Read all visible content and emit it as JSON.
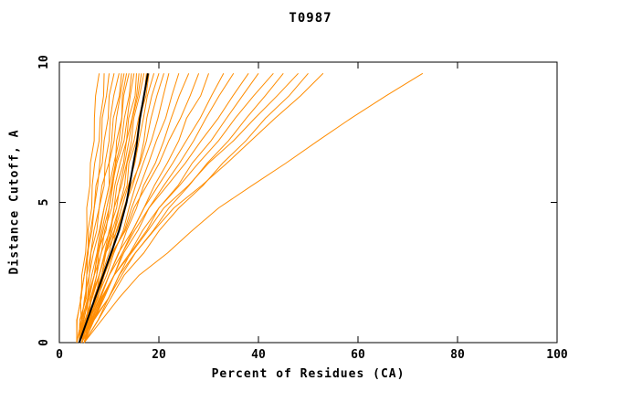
{
  "chart_data": {
    "type": "line",
    "title": "T0987",
    "xlabel": "Percent of Residues (CA)",
    "ylabel": "Distance Cutoff, A",
    "xlim": [
      0,
      100
    ],
    "ylim": [
      0,
      10
    ],
    "x_ticks": [
      0,
      20,
      40,
      60,
      80,
      100
    ],
    "y_ticks": [
      0,
      5,
      10
    ],
    "grid": false,
    "legend": "none",
    "colors": {
      "model_lines": "#ff8c00",
      "reference_line": "#000000",
      "axis": "#000000"
    },
    "y_points": [
      0,
      2.4,
      4.8,
      7.2,
      9.6
    ],
    "orange_series_x": [
      [
        3.5,
        4.5,
        5.5,
        7,
        8
      ],
      [
        3.5,
        5,
        6.5,
        8,
        9
      ],
      [
        4,
        5.5,
        7,
        8.5,
        10
      ],
      [
        3.5,
        5,
        7,
        9,
        11
      ],
      [
        4,
        6,
        8,
        10,
        12
      ],
      [
        3.5,
        5.5,
        8,
        10.5,
        12.5
      ],
      [
        4,
        6.5,
        9,
        11,
        13
      ],
      [
        4.5,
        7,
        9.5,
        11.5,
        13.5
      ],
      [
        4,
        6,
        9,
        12,
        14
      ],
      [
        4.5,
        7.5,
        10,
        12.5,
        14.5
      ],
      [
        4,
        7,
        10,
        13,
        15
      ],
      [
        5,
        8,
        11,
        13.5,
        15.5
      ],
      [
        4,
        7,
        10.5,
        13.5,
        16
      ],
      [
        4.5,
        8,
        11.5,
        14,
        16.5
      ],
      [
        4,
        7.5,
        11,
        14.5,
        17
      ],
      [
        5,
        8.5,
        12,
        15,
        17.5
      ],
      [
        4,
        8,
        12,
        15.5,
        18
      ],
      [
        4.5,
        8.5,
        12.5,
        16,
        19
      ],
      [
        5,
        9,
        13,
        17,
        20
      ],
      [
        4,
        8,
        13,
        17.5,
        21
      ],
      [
        5,
        9.5,
        14,
        18.5,
        22
      ],
      [
        4.5,
        9,
        14.5,
        19.5,
        24
      ],
      [
        5,
        10,
        15.5,
        21,
        26
      ],
      [
        4,
        9,
        15,
        22,
        28
      ],
      [
        5,
        11,
        17,
        24,
        30
      ],
      [
        4.5,
        10,
        17,
        25.5,
        33
      ],
      [
        5,
        11,
        18,
        27,
        35
      ],
      [
        4,
        10,
        18,
        28.5,
        38
      ],
      [
        5,
        12,
        20,
        30.5,
        40
      ],
      [
        4.5,
        11,
        20,
        32,
        43
      ],
      [
        5,
        12.5,
        22,
        34,
        45
      ],
      [
        4,
        11,
        21,
        35,
        48
      ],
      [
        5,
        13,
        24,
        37.5,
        50
      ],
      [
        4.5,
        12,
        23,
        38.5,
        53
      ],
      [
        5,
        16,
        32,
        52,
        73
      ]
    ],
    "black_series": {
      "y": [
        0,
        1,
        2,
        3,
        4,
        5,
        6,
        7,
        8,
        9,
        9.6
      ],
      "x": [
        4,
        6,
        8,
        10,
        12,
        13.5,
        14.5,
        15.5,
        16.2,
        17.2,
        17.8
      ]
    }
  }
}
